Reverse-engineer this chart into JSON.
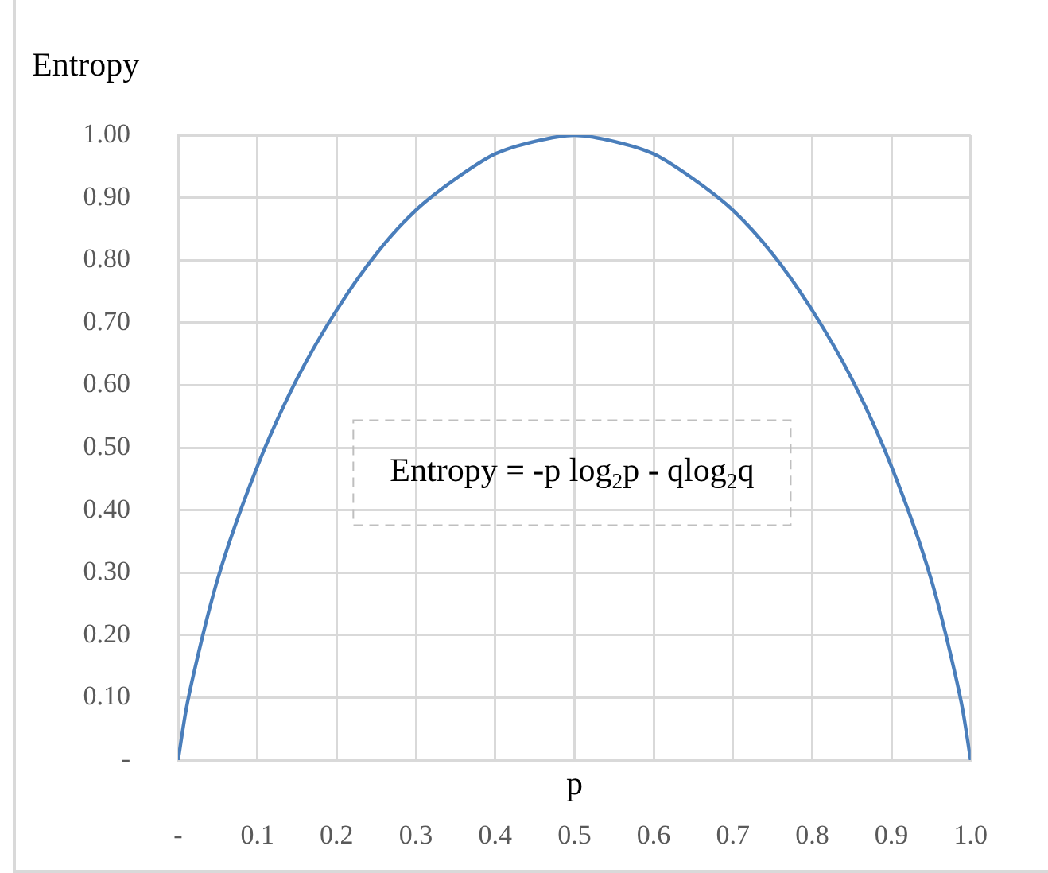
{
  "chart_data": {
    "type": "line",
    "xlabel": "p",
    "ylabel": "Entropy",
    "x": [
      0,
      0.01,
      0.02,
      0.05,
      0.1,
      0.15,
      0.2,
      0.25,
      0.3,
      0.35,
      0.4,
      0.45,
      0.5,
      0.55,
      0.6,
      0.65,
      0.7,
      0.75,
      0.8,
      0.85,
      0.9,
      0.95,
      0.98,
      0.99,
      1
    ],
    "series": [
      {
        "color": "#4a7ebb",
        "values": [
          0,
          0.08,
          0.14,
          0.29,
          0.47,
          0.61,
          0.72,
          0.81,
          0.88,
          0.93,
          0.97,
          0.99,
          1.0,
          0.99,
          0.97,
          0.93,
          0.88,
          0.81,
          0.72,
          0.61,
          0.47,
          0.29,
          0.14,
          0.08,
          0
        ]
      }
    ],
    "xlim": [
      0,
      1
    ],
    "ylim": [
      0,
      1
    ],
    "xticks": [
      {
        "value": 0,
        "label": "-"
      },
      0.1,
      0.2,
      0.3,
      0.4,
      0.5,
      0.6,
      0.7,
      0.8,
      0.9,
      {
        "value": 1,
        "label": "1.0"
      }
    ],
    "yticks": [
      {
        "value": 0,
        "label": "-"
      },
      {
        "value": 0.1,
        "label": "0.10"
      },
      {
        "value": 0.2,
        "label": "0.20"
      },
      {
        "value": 0.3,
        "label": "0.30"
      },
      {
        "value": 0.4,
        "label": "0.40"
      },
      {
        "value": 0.5,
        "label": "0.50"
      },
      {
        "value": 0.6,
        "label": "0.60"
      },
      {
        "value": 0.7,
        "label": "0.70"
      },
      {
        "value": 0.8,
        "label": "0.80"
      },
      {
        "value": 0.9,
        "label": "0.90"
      },
      {
        "value": 1,
        "label": "1.00"
      }
    ],
    "annotations": [
      "Entropy = -p log$_{2}$p - qlog$_{2}$q"
    ],
    "grid": true,
    "legend": false,
    "marker": "none",
    "line_style": "solid"
  }
}
